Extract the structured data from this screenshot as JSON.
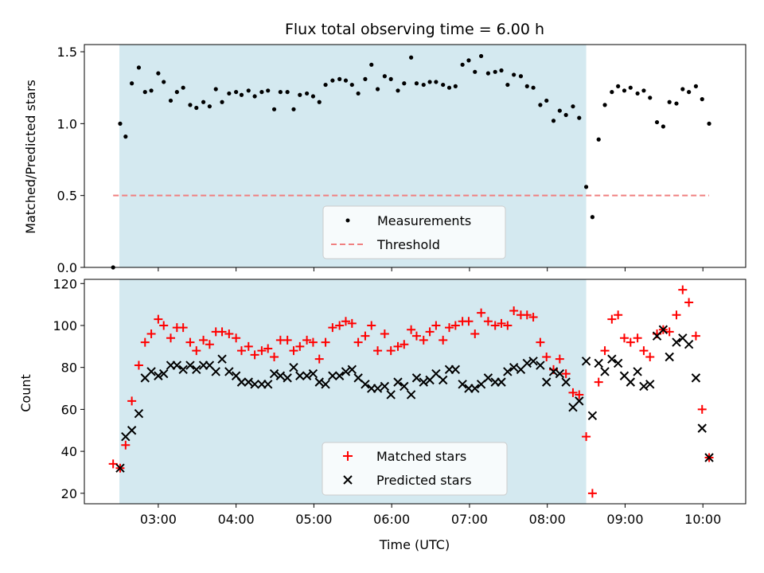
{
  "chart_data": {
    "type": "scatter",
    "title": "Flux total observing time = 6.00 h",
    "xlabel": "Time (UTC)",
    "x_ticks": [
      "03:00",
      "04:00",
      "05:00",
      "06:00",
      "07:00",
      "08:00",
      "09:00",
      "10:00"
    ],
    "x_range_hours": [
      2.05,
      10.55
    ],
    "shaded_interval_hours": [
      2.5,
      8.5
    ],
    "shade_color": "#d4e9f0",
    "top": {
      "ylabel": "Matched/Predicted stars",
      "ylim": [
        0.0,
        1.55
      ],
      "y_ticks": [
        "0.0",
        "0.5",
        "1.0",
        "1.5"
      ],
      "legend": {
        "measurements": "Measurements",
        "threshold": "Threshold",
        "position": "lower center"
      },
      "threshold": {
        "value": 0.5,
        "x_start": 2.42,
        "x_end": 10.08,
        "color": "#f08080"
      },
      "measurements": [
        [
          2.42,
          0.0
        ],
        [
          2.51,
          1.0
        ],
        [
          2.58,
          0.91
        ],
        [
          2.66,
          1.28
        ],
        [
          2.75,
          1.39
        ],
        [
          2.83,
          1.22
        ],
        [
          2.91,
          1.23
        ],
        [
          3.0,
          1.35
        ],
        [
          3.07,
          1.29
        ],
        [
          3.16,
          1.16
        ],
        [
          3.24,
          1.22
        ],
        [
          3.32,
          1.25
        ],
        [
          3.41,
          1.13
        ],
        [
          3.49,
          1.11
        ],
        [
          3.58,
          1.15
        ],
        [
          3.66,
          1.12
        ],
        [
          3.74,
          1.24
        ],
        [
          3.82,
          1.15
        ],
        [
          3.91,
          1.21
        ],
        [
          4.0,
          1.22
        ],
        [
          4.07,
          1.2
        ],
        [
          4.16,
          1.23
        ],
        [
          4.24,
          1.19
        ],
        [
          4.33,
          1.22
        ],
        [
          4.41,
          1.23
        ],
        [
          4.49,
          1.1
        ],
        [
          4.57,
          1.22
        ],
        [
          4.66,
          1.22
        ],
        [
          4.74,
          1.1
        ],
        [
          4.82,
          1.2
        ],
        [
          4.91,
          1.21
        ],
        [
          4.99,
          1.19
        ],
        [
          5.07,
          1.15
        ],
        [
          5.15,
          1.27
        ],
        [
          5.24,
          1.3
        ],
        [
          5.33,
          1.31
        ],
        [
          5.41,
          1.3
        ],
        [
          5.49,
          1.27
        ],
        [
          5.57,
          1.21
        ],
        [
          5.66,
          1.31
        ],
        [
          5.74,
          1.41
        ],
        [
          5.82,
          1.24
        ],
        [
          5.91,
          1.33
        ],
        [
          5.99,
          1.31
        ],
        [
          6.08,
          1.23
        ],
        [
          6.16,
          1.28
        ],
        [
          6.25,
          1.46
        ],
        [
          6.32,
          1.28
        ],
        [
          6.41,
          1.27
        ],
        [
          6.49,
          1.29
        ],
        [
          6.57,
          1.29
        ],
        [
          6.66,
          1.27
        ],
        [
          6.74,
          1.25
        ],
        [
          6.82,
          1.26
        ],
        [
          6.91,
          1.41
        ],
        [
          6.99,
          1.44
        ],
        [
          7.07,
          1.36
        ],
        [
          7.15,
          1.47
        ],
        [
          7.24,
          1.35
        ],
        [
          7.33,
          1.36
        ],
        [
          7.41,
          1.37
        ],
        [
          7.49,
          1.27
        ],
        [
          7.57,
          1.34
        ],
        [
          7.66,
          1.33
        ],
        [
          7.74,
          1.26
        ],
        [
          7.82,
          1.25
        ],
        [
          7.91,
          1.13
        ],
        [
          7.99,
          1.16
        ],
        [
          8.08,
          1.02
        ],
        [
          8.16,
          1.09
        ],
        [
          8.24,
          1.06
        ],
        [
          8.33,
          1.12
        ],
        [
          8.41,
          1.04
        ],
        [
          8.5,
          0.56
        ],
        [
          8.58,
          0.35
        ],
        [
          8.66,
          0.89
        ],
        [
          8.74,
          1.13
        ],
        [
          8.83,
          1.22
        ],
        [
          8.91,
          1.26
        ],
        [
          8.99,
          1.23
        ],
        [
          9.07,
          1.25
        ],
        [
          9.16,
          1.21
        ],
        [
          9.24,
          1.23
        ],
        [
          9.32,
          1.18
        ],
        [
          9.41,
          1.01
        ],
        [
          9.49,
          0.98
        ],
        [
          9.57,
          1.15
        ],
        [
          9.66,
          1.14
        ],
        [
          9.74,
          1.24
        ],
        [
          9.82,
          1.22
        ],
        [
          9.91,
          1.26
        ],
        [
          9.99,
          1.17
        ],
        [
          10.08,
          1.0
        ]
      ]
    },
    "bottom": {
      "ylabel": "Count",
      "ylim": [
        15,
        122
      ],
      "y_ticks": [
        "20",
        "40",
        "60",
        "80",
        "100",
        "120"
      ],
      "legend": {
        "matched": "Matched stars",
        "predicted": "Predicted stars",
        "position": "lower center"
      },
      "matched_color": "#ff0000",
      "predicted_color": "#000000",
      "matched": [
        [
          2.42,
          34
        ],
        [
          2.51,
          32
        ],
        [
          2.58,
          43
        ],
        [
          2.66,
          64
        ],
        [
          2.75,
          81
        ],
        [
          2.83,
          92
        ],
        [
          2.91,
          96
        ],
        [
          3.0,
          103
        ],
        [
          3.07,
          100
        ],
        [
          3.16,
          94
        ],
        [
          3.24,
          99
        ],
        [
          3.32,
          99
        ],
        [
          3.41,
          92
        ],
        [
          3.49,
          88
        ],
        [
          3.58,
          93
        ],
        [
          3.66,
          91
        ],
        [
          3.74,
          97
        ],
        [
          3.82,
          97
        ],
        [
          3.91,
          96
        ],
        [
          4.0,
          94
        ],
        [
          4.07,
          88
        ],
        [
          4.16,
          90
        ],
        [
          4.24,
          86
        ],
        [
          4.33,
          88
        ],
        [
          4.41,
          89
        ],
        [
          4.49,
          85
        ],
        [
          4.57,
          93
        ],
        [
          4.66,
          93
        ],
        [
          4.74,
          88
        ],
        [
          4.82,
          90
        ],
        [
          4.91,
          93
        ],
        [
          4.99,
          92
        ],
        [
          5.07,
          84
        ],
        [
          5.15,
          92
        ],
        [
          5.24,
          99
        ],
        [
          5.33,
          100
        ],
        [
          5.41,
          102
        ],
        [
          5.49,
          101
        ],
        [
          5.57,
          92
        ],
        [
          5.66,
          95
        ],
        [
          5.74,
          100
        ],
        [
          5.82,
          88
        ],
        [
          5.91,
          96
        ],
        [
          5.99,
          88
        ],
        [
          6.08,
          90
        ],
        [
          6.16,
          91
        ],
        [
          6.25,
          98
        ],
        [
          6.32,
          95
        ],
        [
          6.41,
          93
        ],
        [
          6.49,
          97
        ],
        [
          6.57,
          100
        ],
        [
          6.66,
          93
        ],
        [
          6.74,
          99
        ],
        [
          6.82,
          100
        ],
        [
          6.91,
          102
        ],
        [
          6.99,
          102
        ],
        [
          7.07,
          96
        ],
        [
          7.15,
          106
        ],
        [
          7.24,
          102
        ],
        [
          7.33,
          100
        ],
        [
          7.41,
          101
        ],
        [
          7.49,
          100
        ],
        [
          7.57,
          107
        ],
        [
          7.66,
          105
        ],
        [
          7.74,
          105
        ],
        [
          7.82,
          104
        ],
        [
          7.91,
          92
        ],
        [
          7.99,
          85
        ],
        [
          8.08,
          79
        ],
        [
          8.16,
          84
        ],
        [
          8.24,
          77
        ],
        [
          8.33,
          68
        ],
        [
          8.41,
          67
        ],
        [
          8.5,
          47
        ],
        [
          8.58,
          20
        ],
        [
          8.66,
          73
        ],
        [
          8.74,
          88
        ],
        [
          8.83,
          103
        ],
        [
          8.91,
          105
        ],
        [
          8.99,
          94
        ],
        [
          9.07,
          92
        ],
        [
          9.16,
          94
        ],
        [
          9.24,
          88
        ],
        [
          9.32,
          85
        ],
        [
          9.41,
          96
        ],
        [
          9.49,
          98
        ],
        [
          9.57,
          97
        ],
        [
          9.66,
          105
        ],
        [
          9.74,
          117
        ],
        [
          9.82,
          111
        ],
        [
          9.91,
          95
        ],
        [
          9.99,
          60
        ],
        [
          10.08,
          37
        ]
      ],
      "predicted": [
        [
          2.51,
          32
        ],
        [
          2.58,
          47
        ],
        [
          2.66,
          50
        ],
        [
          2.75,
          58
        ],
        [
          2.83,
          75
        ],
        [
          2.91,
          78
        ],
        [
          3.0,
          76
        ],
        [
          3.07,
          77
        ],
        [
          3.16,
          81
        ],
        [
          3.24,
          81
        ],
        [
          3.32,
          79
        ],
        [
          3.41,
          81
        ],
        [
          3.49,
          79
        ],
        [
          3.58,
          81
        ],
        [
          3.66,
          81
        ],
        [
          3.74,
          78
        ],
        [
          3.82,
          84
        ],
        [
          3.91,
          78
        ],
        [
          4.0,
          76
        ],
        [
          4.07,
          73
        ],
        [
          4.16,
          73
        ],
        [
          4.24,
          72
        ],
        [
          4.33,
          72
        ],
        [
          4.41,
          72
        ],
        [
          4.49,
          77
        ],
        [
          4.57,
          76
        ],
        [
          4.66,
          75
        ],
        [
          4.74,
          80
        ],
        [
          4.82,
          76
        ],
        [
          4.91,
          76
        ],
        [
          4.99,
          77
        ],
        [
          5.07,
          73
        ],
        [
          5.15,
          72
        ],
        [
          5.24,
          76
        ],
        [
          5.33,
          76
        ],
        [
          5.41,
          78
        ],
        [
          5.49,
          79
        ],
        [
          5.57,
          75
        ],
        [
          5.66,
          72
        ],
        [
          5.74,
          70
        ],
        [
          5.82,
          70
        ],
        [
          5.91,
          71
        ],
        [
          5.99,
          67
        ],
        [
          6.08,
          73
        ],
        [
          6.16,
          71
        ],
        [
          6.25,
          67
        ],
        [
          6.32,
          75
        ],
        [
          6.41,
          73
        ],
        [
          6.49,
          74
        ],
        [
          6.57,
          77
        ],
        [
          6.66,
          74
        ],
        [
          6.74,
          79
        ],
        [
          6.82,
          79
        ],
        [
          6.91,
          72
        ],
        [
          6.99,
          70
        ],
        [
          7.07,
          70
        ],
        [
          7.15,
          72
        ],
        [
          7.24,
          75
        ],
        [
          7.33,
          73
        ],
        [
          7.41,
          73
        ],
        [
          7.49,
          78
        ],
        [
          7.57,
          80
        ],
        [
          7.66,
          79
        ],
        [
          7.74,
          82
        ],
        [
          7.82,
          83
        ],
        [
          7.91,
          81
        ],
        [
          7.99,
          73
        ],
        [
          8.08,
          78
        ],
        [
          8.16,
          77
        ],
        [
          8.24,
          73
        ],
        [
          8.33,
          61
        ],
        [
          8.41,
          64
        ],
        [
          8.5,
          83
        ],
        [
          8.58,
          57
        ],
        [
          8.66,
          82
        ],
        [
          8.74,
          78
        ],
        [
          8.83,
          84
        ],
        [
          8.91,
          82
        ],
        [
          8.99,
          76
        ],
        [
          9.07,
          73
        ],
        [
          9.16,
          78
        ],
        [
          9.24,
          71
        ],
        [
          9.32,
          72
        ],
        [
          9.41,
          95
        ],
        [
          9.49,
          98
        ],
        [
          9.57,
          85
        ],
        [
          9.66,
          92
        ],
        [
          9.74,
          94
        ],
        [
          9.82,
          91
        ],
        [
          9.91,
          75
        ],
        [
          9.99,
          51
        ],
        [
          10.08,
          37
        ]
      ]
    }
  }
}
